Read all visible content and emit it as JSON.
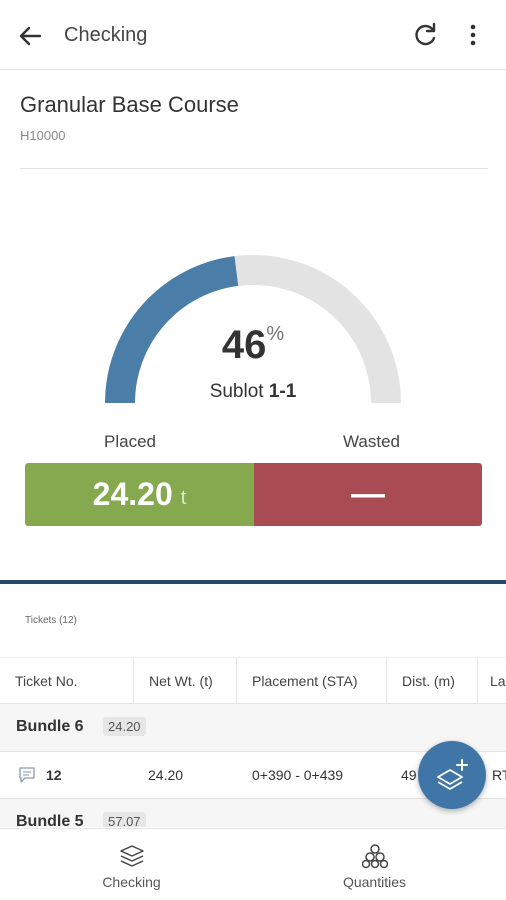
{
  "appbar": {
    "title": "Checking",
    "back_icon": "arrow-left-icon",
    "refresh_icon": "refresh-icon",
    "more_icon": "more-vertical-icon"
  },
  "item": {
    "name": "Granular Base Course",
    "code": "H10000"
  },
  "gauge": {
    "percent_value": 46,
    "percent_text": "46",
    "percent_unit": "%",
    "sublot_label": "Sublot",
    "sublot_value": "1-1",
    "fill_color": "#4a7ea8",
    "track_color": "#e3e3e3"
  },
  "summary": {
    "placed_label": "Placed",
    "wasted_label": "Wasted",
    "placed_value": "24.20",
    "placed_unit": "t",
    "wasted_value": "—",
    "placed_color": "#86a84f",
    "wasted_color": "#a84b52"
  },
  "tickets": {
    "heading": "Tickets (12)",
    "columns": [
      "Ticket No.",
      "Net Wt. (t)",
      "Placement (STA)",
      "Dist. (m)",
      "La"
    ],
    "groups": [
      {
        "name": "Bundle 6",
        "total": "24.20",
        "rows": [
          {
            "ticket": "12",
            "net_wt": "24.20",
            "placement": "0+390 - 0+439",
            "dist": "49",
            "lane": "RT"
          }
        ]
      },
      {
        "name": "Bundle 5",
        "total": "57.07",
        "rows": []
      }
    ]
  },
  "fab": {
    "icon": "add-layer-icon"
  },
  "bottom_nav": [
    {
      "label": "Checking",
      "icon": "layers-icon"
    },
    {
      "label": "Quantities",
      "icon": "stack-circles-icon"
    }
  ]
}
